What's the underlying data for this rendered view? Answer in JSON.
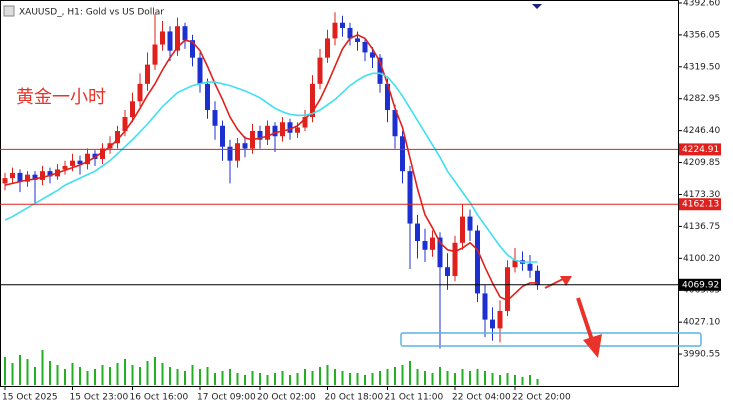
{
  "chart_data": {
    "type": "candlestick",
    "title": "XAUUSD_, H1:  Gold vs US Dollar",
    "annotation": "黄金一小时",
    "categories": [
      "15 Oct 2025",
      null,
      null,
      null,
      null,
      null,
      null,
      null,
      null,
      "15 Oct 23:00",
      null,
      null,
      null,
      null,
      null,
      null,
      null,
      "16 Oct 16:00",
      null,
      null,
      null,
      null,
      null,
      null,
      null,
      null,
      "17 Oct 09:00",
      null,
      null,
      null,
      null,
      null,
      null,
      null,
      "20 Oct 02:00",
      null,
      null,
      null,
      null,
      null,
      null,
      null,
      null,
      "20 Oct 18:00",
      null,
      null,
      null,
      null,
      null,
      null,
      null,
      "21 Oct 11:00",
      null,
      null,
      null,
      null,
      null,
      null,
      null,
      null,
      "22 Oct 04:00",
      null,
      null,
      null,
      null,
      null,
      null,
      null,
      "22 Oct 20:00",
      null,
      null,
      null
    ],
    "open": [
      4186,
      4192,
      4198,
      4188,
      4196,
      4190,
      4200,
      4194,
      4202,
      4206,
      4212,
      4208,
      4220,
      4214,
      4226,
      4232,
      4246,
      4262,
      4280,
      4300,
      4322,
      4345,
      4360,
      4338,
      4366,
      4350,
      4330,
      4300,
      4270,
      4252,
      4228,
      4212,
      4232,
      4226,
      4246,
      4236,
      4252,
      4240,
      4256,
      4244,
      4250,
      4262,
      4300,
      4330,
      4352,
      4370,
      4364,
      4352,
      4348,
      4336,
      4330,
      4300,
      4270,
      4240,
      4200,
      4140,
      4120,
      4110,
      4124,
      4090,
      4080,
      4118,
      4148,
      4132,
      4060,
      4030,
      4020,
      4040,
      4090,
      4098,
      4094,
      4086
    ],
    "high": [
      4198,
      4204,
      4202,
      4200,
      4200,
      4206,
      4204,
      4208,
      4212,
      4220,
      4218,
      4226,
      4224,
      4232,
      4240,
      4252,
      4270,
      4290,
      4312,
      4336,
      4380,
      4372,
      4366,
      4376,
      4370,
      4356,
      4336,
      4306,
      4280,
      4258,
      4236,
      4238,
      4240,
      4254,
      4252,
      4258,
      4256,
      4262,
      4260,
      4256,
      4270,
      4310,
      4340,
      4362,
      4382,
      4378,
      4370,
      4360,
      4352,
      4342,
      4334,
      4306,
      4276,
      4246,
      4206,
      4150,
      4134,
      4132,
      4130,
      4106,
      4126,
      4162,
      4156,
      4138,
      4070,
      4044,
      4052,
      4098,
      4112,
      4108,
      4104,
      4092
    ],
    "low": [
      4178,
      4186,
      4176,
      4182,
      4162,
      4184,
      4186,
      4190,
      4196,
      4200,
      4196,
      4202,
      4206,
      4208,
      4220,
      4226,
      4240,
      4256,
      4274,
      4292,
      4316,
      4338,
      4326,
      4332,
      4340,
      4320,
      4290,
      4260,
      4236,
      4212,
      4186,
      4204,
      4216,
      4220,
      4226,
      4230,
      4222,
      4234,
      4236,
      4238,
      4246,
      4256,
      4294,
      4324,
      4344,
      4354,
      4344,
      4338,
      4326,
      4318,
      4290,
      4256,
      4226,
      4186,
      4088,
      4100,
      4096,
      4102,
      3997,
      4064,
      4074,
      4110,
      4120,
      4050,
      4010,
      4006,
      4004,
      4034,
      4084,
      4086,
      4078,
      4064
    ],
    "close": [
      4192,
      4198,
      4188,
      4196,
      4190,
      4200,
      4194,
      4202,
      4206,
      4212,
      4208,
      4220,
      4214,
      4226,
      4232,
      4246,
      4262,
      4280,
      4300,
      4322,
      4345,
      4360,
      4338,
      4366,
      4350,
      4330,
      4300,
      4270,
      4252,
      4228,
      4212,
      4232,
      4226,
      4246,
      4236,
      4252,
      4240,
      4256,
      4244,
      4250,
      4262,
      4300,
      4330,
      4352,
      4370,
      4364,
      4352,
      4348,
      4336,
      4330,
      4300,
      4270,
      4240,
      4200,
      4140,
      4120,
      4110,
      4124,
      4090,
      4080,
      4118,
      4148,
      4132,
      4060,
      4030,
      4020,
      4040,
      4090,
      4098,
      4094,
      4086,
      4070
    ],
    "up_color": "#e0201c",
    "down_color": "#1c2fd0",
    "series": [
      {
        "color": "#e0201c",
        "values": [
          4184,
          4186,
          4188,
          4190,
          4191,
          4193,
          4195,
          4198,
          4201,
          4204,
          4207,
          4211,
          4216,
          4222,
          4228,
          4236,
          4246,
          4258,
          4272,
          4287,
          4300,
          4316,
          4330,
          4342,
          4350,
          4348,
          4338,
          4320,
          4300,
          4282,
          4262,
          4248,
          4238,
          4236,
          4238,
          4240,
          4244,
          4246,
          4248,
          4252,
          4260,
          4268,
          4282,
          4300,
          4320,
          4340,
          4352,
          4356,
          4352,
          4340,
          4325,
          4300,
          4272,
          4250,
          4215,
          4180,
          4150,
          4135,
          4118,
          4110,
          4108,
          4112,
          4118,
          4110,
          4090,
          4072,
          4056,
          4052,
          4060,
          4068,
          4072,
          4072
        ]
      },
      {
        "color": "#3ee0f0",
        "values": [
          4144,
          4148,
          4153,
          4158,
          4163,
          4168,
          4173,
          4178,
          4184,
          4188,
          4192,
          4196,
          4200,
          4206,
          4212,
          4220,
          4228,
          4236,
          4245,
          4254,
          4264,
          4274,
          4282,
          4290,
          4294,
          4298,
          4300,
          4302,
          4302,
          4300,
          4298,
          4295,
          4292,
          4288,
          4284,
          4278,
          4272,
          4268,
          4265,
          4264,
          4264,
          4266,
          4270,
          4276,
          4282,
          4290,
          4298,
          4304,
          4309,
          4312,
          4312,
          4308,
          4298,
          4286,
          4272,
          4258,
          4244,
          4230,
          4216,
          4200,
          4188,
          4176,
          4164,
          4150,
          4138,
          4126,
          4114,
          4104,
          4098,
          4096,
          4096,
          4096
        ]
      }
    ],
    "volume": [
      28,
      22,
      30,
      26,
      18,
      35,
      24,
      20,
      16,
      22,
      18,
      14,
      16,
      20,
      18,
      22,
      26,
      20,
      18,
      24,
      28,
      22,
      18,
      16,
      14,
      20,
      16,
      18,
      12,
      14,
      16,
      12,
      10,
      14,
      12,
      10,
      12,
      14,
      10,
      12,
      16,
      14,
      18,
      20,
      16,
      14,
      12,
      12,
      10,
      12,
      14,
      16,
      18,
      20,
      24,
      16,
      14,
      12,
      18,
      14,
      12,
      16,
      14,
      16,
      14,
      12,
      10,
      12,
      10,
      8,
      10,
      6
    ],
    "volume_color": "#22b022",
    "ylim": [
      3954,
      4396
    ],
    "yticks": [
      {
        "value": 4392.6,
        "label": "4392.60"
      },
      4356.05,
      {
        "value": 4319.5,
        "label": "4319.50"
      },
      4282.95,
      {
        "value": 4246.4,
        "label": "4246.40"
      },
      4209.85,
      {
        "value": 4173.3,
        "label": "4173.30"
      },
      4136.75,
      {
        "value": 4100.2,
        "label": "4100.20"
      },
      4063.65,
      {
        "value": 4027.1,
        "label": "4027.10"
      },
      3990.55
    ],
    "hlines": [
      {
        "value": 4224.91,
        "color": "#e0201c"
      },
      {
        "value": 4162.13,
        "color": "#e0201c"
      },
      {
        "value": 4069.92,
        "color": "#000000"
      }
    ]
  }
}
